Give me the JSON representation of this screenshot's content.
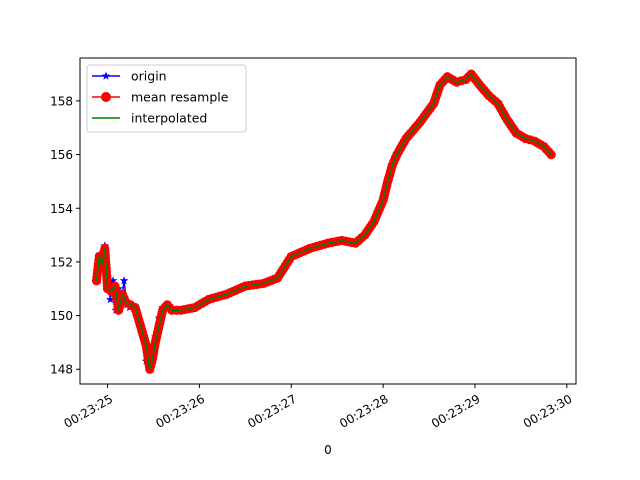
{
  "chart_data": {
    "type": "line",
    "title": "",
    "xlabel": "0",
    "ylabel": "",
    "x_unit": "time (HH:MM:SS)",
    "xlim": [
      "00:23:24.70",
      "00:23:30.10"
    ],
    "ylim": [
      147.45,
      159.6
    ],
    "x_ticks": [
      "00:23:25",
      "00:23:26",
      "00:23:27",
      "00:23:28",
      "00:23:29",
      "00:23:30"
    ],
    "y_ticks": [
      148,
      150,
      152,
      154,
      156,
      158
    ],
    "grid": false,
    "legend_placement": "top-left",
    "series": [
      {
        "name": "origin",
        "color": "#0000ff",
        "marker": "star",
        "x": [
          "00:23:24.88",
          "00:23:24.92",
          "00:23:24.95",
          "00:23:24.97",
          "00:23:25.00",
          "00:23:25.03",
          "00:23:25.06",
          "00:23:25.09",
          "00:23:25.12",
          "00:23:25.15",
          "00:23:25.18",
          "00:23:25.21",
          "00:23:25.24",
          "00:23:25.30",
          "00:23:25.35",
          "00:23:25.42",
          "00:23:25.46",
          "00:23:25.49",
          "00:23:25.52",
          "00:23:25.56",
          "00:23:25.60",
          "00:23:25.64",
          "00:23:25.70",
          "00:23:25.80",
          "00:23:25.95",
          "00:23:26.10",
          "00:23:26.30",
          "00:23:26.50",
          "00:23:26.70",
          "00:23:26.85",
          "00:23:27.00",
          "00:23:27.20",
          "00:23:27.40",
          "00:23:27.55",
          "00:23:27.70",
          "00:23:27.80",
          "00:23:27.90",
          "00:23:28.00",
          "00:23:28.05",
          "00:23:28.10",
          "00:23:28.15",
          "00:23:28.25",
          "00:23:28.40",
          "00:23:28.55",
          "00:23:28.62",
          "00:23:28.70",
          "00:23:28.80",
          "00:23:28.90",
          "00:23:28.96",
          "00:23:29.05",
          "00:23:29.15",
          "00:23:29.25",
          "00:23:29.35",
          "00:23:29.45",
          "00:23:29.55",
          "00:23:29.65",
          "00:23:29.75",
          "00:23:29.83"
        ],
        "y": [
          151.3,
          152.3,
          151.8,
          152.6,
          151.4,
          150.6,
          151.3,
          150.2,
          151.0,
          150.5,
          151.3,
          150.4,
          150.3,
          150.1,
          149.6,
          148.3,
          148.0,
          148.5,
          149.2,
          149.9,
          150.3,
          150.4,
          150.2,
          150.2,
          150.3,
          150.6,
          150.8,
          151.1,
          151.2,
          151.4,
          152.2,
          152.5,
          152.7,
          152.8,
          152.7,
          153.0,
          153.5,
          154.3,
          155.0,
          155.6,
          156.0,
          156.6,
          157.2,
          157.9,
          158.6,
          158.9,
          158.7,
          158.8,
          159.0,
          158.6,
          158.2,
          157.9,
          157.3,
          156.8,
          156.6,
          156.5,
          156.3,
          156.0
        ]
      },
      {
        "name": "mean resample",
        "color": "#ff0000",
        "marker": "circle",
        "x": [
          "00:23:24.88",
          "00:23:24.91",
          "00:23:24.94",
          "00:23:24.97",
          "00:23:25.00",
          "00:23:25.04",
          "00:23:25.08",
          "00:23:25.12",
          "00:23:25.16",
          "00:23:25.20",
          "00:23:25.25",
          "00:23:25.30",
          "00:23:25.36",
          "00:23:25.42",
          "00:23:25.46",
          "00:23:25.49",
          "00:23:25.52",
          "00:23:25.56",
          "00:23:25.60",
          "00:23:25.65",
          "00:23:25.70",
          "00:23:25.80",
          "00:23:25.95",
          "00:23:26.10",
          "00:23:26.30",
          "00:23:26.50",
          "00:23:26.70",
          "00:23:26.85",
          "00:23:27.00",
          "00:23:27.20",
          "00:23:27.40",
          "00:23:27.55",
          "00:23:27.70",
          "00:23:27.80",
          "00:23:27.90",
          "00:23:28.00",
          "00:23:28.05",
          "00:23:28.10",
          "00:23:28.15",
          "00:23:28.25",
          "00:23:28.40",
          "00:23:28.55",
          "00:23:28.62",
          "00:23:28.70",
          "00:23:28.80",
          "00:23:28.90",
          "00:23:28.96",
          "00:23:29.05",
          "00:23:29.15",
          "00:23:29.25",
          "00:23:29.35",
          "00:23:29.45",
          "00:23:29.55",
          "00:23:29.65",
          "00:23:29.75",
          "00:23:29.83"
        ],
        "y": [
          151.3,
          152.2,
          151.9,
          152.5,
          151.0,
          150.9,
          151.1,
          150.2,
          150.8,
          150.5,
          150.4,
          150.3,
          149.6,
          148.9,
          148.0,
          148.4,
          149.0,
          149.6,
          150.2,
          150.4,
          150.2,
          150.2,
          150.3,
          150.6,
          150.8,
          151.1,
          151.2,
          151.4,
          152.2,
          152.5,
          152.7,
          152.8,
          152.7,
          153.0,
          153.5,
          154.3,
          155.0,
          155.6,
          156.0,
          156.6,
          157.2,
          157.9,
          158.6,
          158.9,
          158.7,
          158.8,
          159.0,
          158.6,
          158.2,
          157.9,
          157.3,
          156.8,
          156.6,
          156.5,
          156.3,
          156.0
        ]
      },
      {
        "name": "interpolated",
        "color": "#008000",
        "marker": "none",
        "x": [
          "00:23:24.88",
          "00:23:24.91",
          "00:23:24.94",
          "00:23:24.97",
          "00:23:25.00",
          "00:23:25.04",
          "00:23:25.08",
          "00:23:25.12",
          "00:23:25.16",
          "00:23:25.20",
          "00:23:25.25",
          "00:23:25.30",
          "00:23:25.36",
          "00:23:25.42",
          "00:23:25.46",
          "00:23:25.49",
          "00:23:25.52",
          "00:23:25.56",
          "00:23:25.60",
          "00:23:25.65",
          "00:23:25.70",
          "00:23:25.80",
          "00:23:25.95",
          "00:23:26.10",
          "00:23:26.30",
          "00:23:26.50",
          "00:23:26.70",
          "00:23:26.85",
          "00:23:27.00",
          "00:23:27.20",
          "00:23:27.40",
          "00:23:27.55",
          "00:23:27.70",
          "00:23:27.80",
          "00:23:27.90",
          "00:23:28.00",
          "00:23:28.05",
          "00:23:28.10",
          "00:23:28.15",
          "00:23:28.25",
          "00:23:28.40",
          "00:23:28.55",
          "00:23:28.62",
          "00:23:28.70",
          "00:23:28.80",
          "00:23:28.90",
          "00:23:28.96",
          "00:23:29.05",
          "00:23:29.15",
          "00:23:29.25",
          "00:23:29.35",
          "00:23:29.45",
          "00:23:29.55",
          "00:23:29.65",
          "00:23:29.75",
          "00:23:29.83"
        ],
        "y": [
          151.3,
          152.2,
          151.9,
          152.5,
          151.0,
          150.9,
          151.1,
          150.2,
          150.8,
          150.5,
          150.4,
          150.3,
          149.6,
          148.9,
          148.0,
          148.4,
          149.0,
          149.6,
          150.2,
          150.4,
          150.2,
          150.2,
          150.3,
          150.6,
          150.8,
          151.1,
          151.2,
          151.4,
          152.2,
          152.5,
          152.7,
          152.8,
          152.7,
          153.0,
          153.5,
          154.3,
          155.0,
          155.6,
          156.0,
          156.6,
          157.2,
          157.9,
          158.6,
          158.9,
          158.7,
          158.8,
          159.0,
          158.6,
          158.2,
          157.9,
          157.3,
          156.8,
          156.6,
          156.5,
          156.3,
          156.0
        ]
      }
    ]
  }
}
